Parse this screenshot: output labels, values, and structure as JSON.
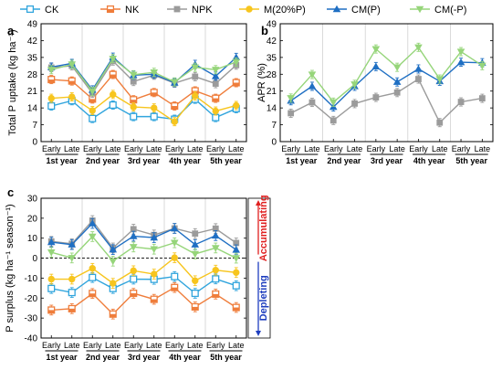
{
  "legend": {
    "items": [
      {
        "key": "CK",
        "label": "CK",
        "color": "#31a5dd",
        "marker": "square-open"
      },
      {
        "key": "NK",
        "label": "NK",
        "color": "#ef7d3b",
        "marker": "square-half"
      },
      {
        "key": "NPK",
        "label": "NPK",
        "color": "#9b9b9b",
        "marker": "square"
      },
      {
        "key": "M",
        "label": "M(20%P)",
        "color": "#f7c51e",
        "marker": "circle"
      },
      {
        "key": "CMP",
        "label": "CM(P)",
        "color": "#1f6fc3",
        "marker": "triangle"
      },
      {
        "key": "CMnP",
        "label": "CM(-P)",
        "color": "#96d57a",
        "marker": "triangle-down"
      }
    ]
  },
  "x_labels": {
    "early": "Early",
    "late": "Late",
    "years": [
      "1st year",
      "2nd year",
      "3rd year",
      "4th year",
      "5th year"
    ]
  },
  "side_labels": {
    "accumulating": "Accumulating",
    "depleting": "Depleting"
  },
  "chart_data": [
    {
      "panel": "a",
      "type": "line",
      "ylabel": "Total P uptake (kg ha⁻¹)",
      "ylim": [
        0,
        49
      ],
      "yticks": [
        0,
        7,
        14,
        21,
        28,
        35,
        42,
        49
      ],
      "x": [
        "1st year Early",
        "1st year Late",
        "2nd year Early",
        "2nd year Late",
        "3rd year Early",
        "3rd year Late",
        "4th year Early",
        "4th year Late",
        "5th year Early",
        "5th year Late"
      ],
      "series": [
        {
          "name": "CK",
          "values": [
            14.8,
            17.0,
            9.6,
            15.2,
            10.4,
            10.4,
            9.3,
            17.6,
            10.0,
            13.7
          ]
        },
        {
          "name": "NK",
          "values": [
            25.8,
            25.2,
            17.7,
            27.9,
            17.4,
            20.4,
            14.8,
            21.1,
            18.0,
            24.5
          ]
        },
        {
          "name": "NPK",
          "values": [
            30.8,
            31.5,
            20.1,
            33.5,
            25.0,
            27.6,
            24.3,
            27.0,
            24.1,
            31.8
          ]
        },
        {
          "name": "M(20%P)",
          "values": [
            18.0,
            18.6,
            12.9,
            19.6,
            14.4,
            14.0,
            8.3,
            19.0,
            12.7,
            15.0
          ]
        },
        {
          "name": "CM(P)",
          "values": [
            31.0,
            32.5,
            21.5,
            35.1,
            27.6,
            28.0,
            24.5,
            32.1,
            27.2,
            35.0
          ]
        },
        {
          "name": "CM(-P)",
          "values": [
            29.9,
            32.1,
            20.9,
            34.5,
            27.8,
            28.8,
            24.8,
            30.9,
            29.9,
            33.1
          ]
        }
      ]
    },
    {
      "panel": "b",
      "type": "line",
      "ylabel": "APR (%)",
      "ylim": [
        0,
        49
      ],
      "yticks": [
        0,
        7,
        14,
        21,
        28,
        35,
        42,
        49
      ],
      "x": [
        "1st year Early",
        "1st year Late",
        "2nd year Early",
        "2nd year Late",
        "3rd year Early",
        "3rd year Late",
        "4th year Early",
        "4th year Late",
        "5th year Early",
        "5th year Late"
      ],
      "series": [
        {
          "name": "NPK",
          "values": [
            11.8,
            16.3,
            8.8,
            15.8,
            18.4,
            20.4,
            26.0,
            7.9,
            16.5,
            18.0
          ]
        },
        {
          "name": "CM(P)",
          "values": [
            17.0,
            23.0,
            14.4,
            23.0,
            31.2,
            24.8,
            30.2,
            25.1,
            33.0,
            32.8
          ]
        },
        {
          "name": "CM(-P)",
          "values": [
            18.1,
            27.9,
            16.4,
            23.8,
            38.5,
            30.9,
            39.2,
            26.0,
            37.4,
            31.6
          ]
        }
      ]
    },
    {
      "panel": "c",
      "type": "line",
      "ylabel": "P surplus (kg ha⁻¹ season⁻¹)",
      "ylim": [
        -40,
        30
      ],
      "yticks": [
        -40,
        -30,
        -20,
        -10,
        0,
        10,
        20,
        30
      ],
      "x": [
        "1st year Early",
        "1st year Late",
        "2nd year Early",
        "2nd year Late",
        "3rd year Early",
        "3rd year Late",
        "4th year Early",
        "4th year Late",
        "5th year Early",
        "5th year Late"
      ],
      "series": [
        {
          "name": "CK",
          "values": [
            -15.2,
            -17.2,
            -9.7,
            -15.2,
            -10.5,
            -10.6,
            -9.2,
            -17.6,
            -10.4,
            -13.8
          ]
        },
        {
          "name": "NK",
          "values": [
            -26.0,
            -25.3,
            -17.7,
            -28.0,
            -17.6,
            -20.6,
            -14.7,
            -24.4,
            -18.0,
            -24.7
          ]
        },
        {
          "name": "NPK",
          "values": [
            8.4,
            7.2,
            18.8,
            5.1,
            14.5,
            11.6,
            14.9,
            12.3,
            14.8,
            7.6
          ]
        },
        {
          "name": "M(20%P)",
          "values": [
            -10.5,
            -10.5,
            -5.1,
            -12.6,
            -6.3,
            -8.0,
            0.2,
            -11.3,
            -6.0,
            -7.2
          ]
        },
        {
          "name": "CM(P)",
          "values": [
            8.0,
            6.8,
            17.4,
            4.3,
            11.0,
            10.3,
            14.9,
            6.8,
            11.3,
            4.2
          ]
        },
        {
          "name": "CM(-P)",
          "values": [
            2.9,
            0.1,
            10.8,
            -1.5,
            5.6,
            4.5,
            7.7,
            2.1,
            5.1,
            0.0
          ]
        }
      ]
    }
  ]
}
